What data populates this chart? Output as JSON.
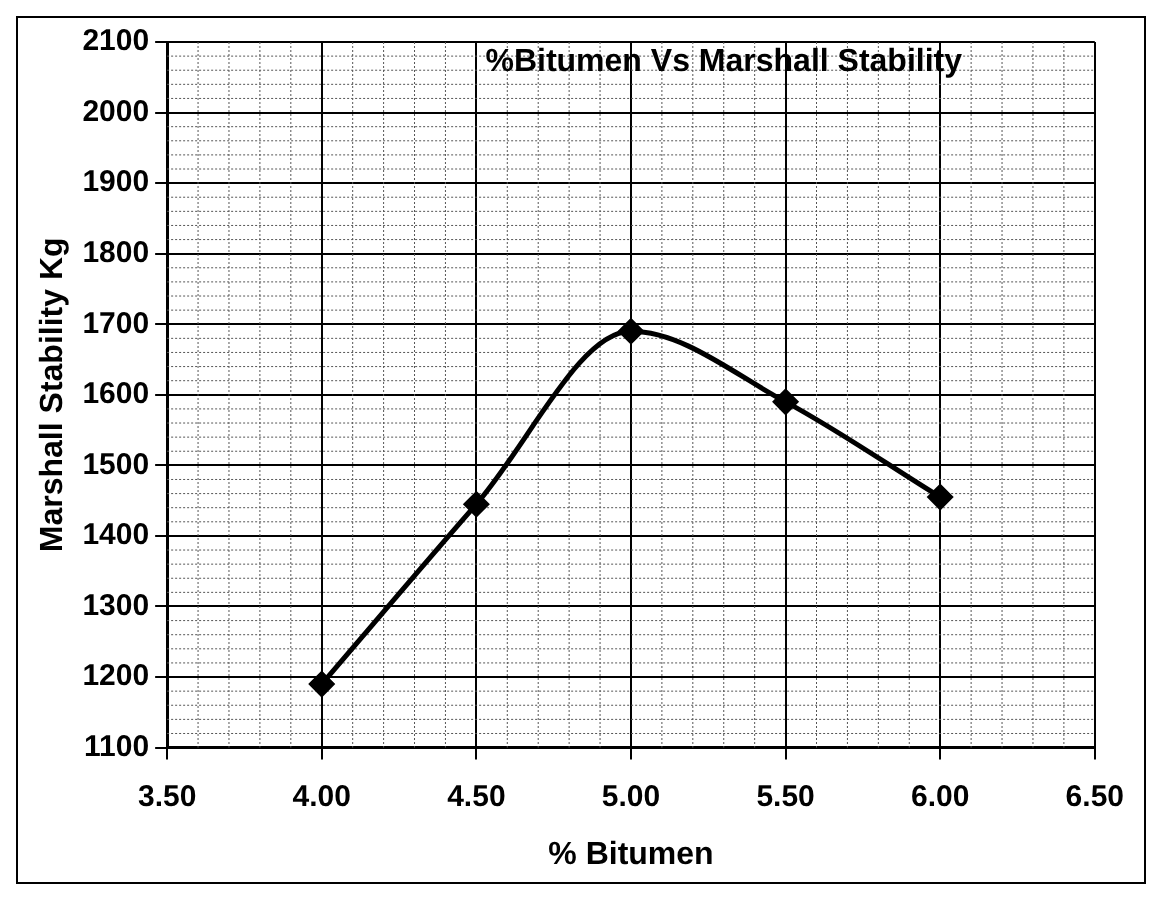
{
  "chart_data": {
    "type": "line",
    "title": "%Bitumen Vs Marshall Stability",
    "xlabel": "% Bitumen",
    "ylabel": "Marshall Stability Kg",
    "x": [
      4.0,
      4.5,
      5.0,
      5.5,
      6.0
    ],
    "series": [
      {
        "color": "#000000",
        "values": [
          1190,
          1445,
          1690,
          1590,
          1455
        ]
      }
    ],
    "xlim": [
      3.5,
      6.5
    ],
    "xticks": [
      {
        "value": 3.5,
        "label": "3.50"
      },
      {
        "value": 4,
        "label": "4.00"
      },
      {
        "value": 4.5,
        "label": "4.50"
      },
      {
        "value": 5,
        "label": "5.00"
      },
      {
        "value": 5.5,
        "label": "5.50"
      },
      {
        "value": 6,
        "label": "6.00"
      },
      {
        "value": 6.5,
        "label": "6.50"
      }
    ],
    "ylim": [
      1100,
      2100
    ],
    "yticks": [
      1100,
      1200,
      1300,
      1400,
      1500,
      1600,
      1700,
      1800,
      1900,
      2000,
      2100
    ],
    "grid": true,
    "marker": "diamond",
    "line_style": "solid",
    "legend": false
  }
}
